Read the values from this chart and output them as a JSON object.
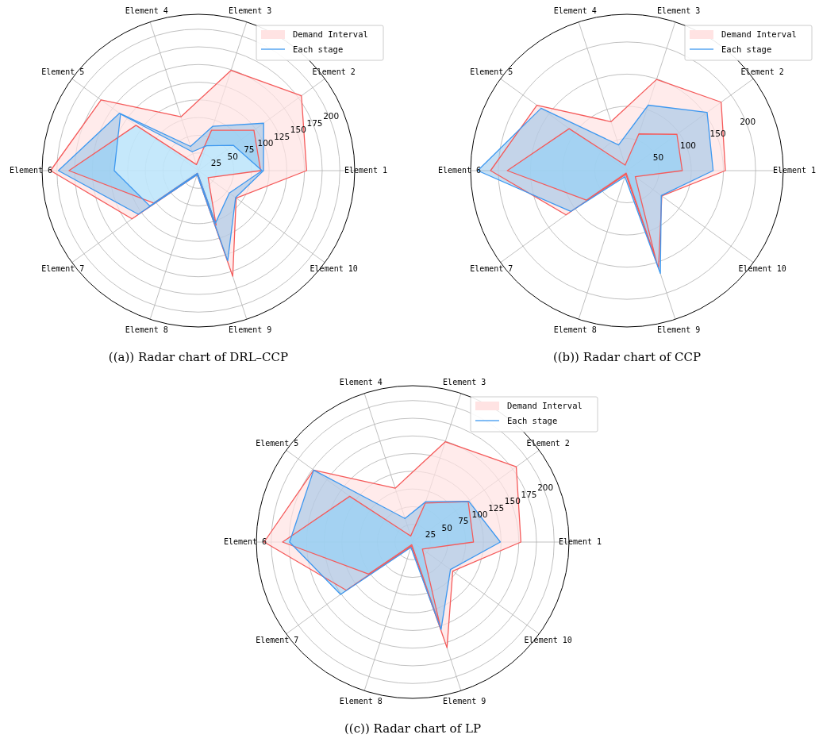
{
  "chart_data": [
    {
      "type": "radar",
      "title": "((a)) Radar chart of DRL–CCP",
      "categories": [
        "Element 3",
        "Element 2",
        "Element 1",
        "Element 10",
        "Element 9",
        "Element 8",
        "Element 7",
        "Element 6",
        "Element 5",
        "Element 4"
      ],
      "ylim": [
        0,
        221
      ],
      "yticks": [
        25,
        50,
        75,
        100,
        125,
        150,
        175,
        200
      ],
      "grid": true,
      "legend": "top right",
      "series": [
        {
          "name": "Demand Interval",
          "color": "#f55a5a",
          "values": [
            149,
            180,
            153,
            66,
            157,
            6,
            116,
            209,
            170,
            80
          ]
        },
        {
          "color": "#f55a5a",
          "values": [
            60,
            97,
            88,
            17,
            81,
            4,
            78,
            183,
            109,
            9
          ]
        },
        {
          "name": "Each stage",
          "color": "#3d98f0",
          "values": [
            66,
            114,
            92,
            65,
            134,
            6,
            105,
            198,
            138,
            36
          ]
        },
        {
          "color": "#3d98f0",
          "values": [
            37,
            61,
            90,
            54,
            78,
            4,
            85,
            119,
            136,
            28
          ]
        }
      ]
    },
    {
      "type": "radar",
      "title": "((b)) Radar chart of CCP",
      "categories": [
        "Element 3",
        "Element 2",
        "Element 1",
        "Element 10",
        "Element 9",
        "Element 8",
        "Element 7",
        "Element 6",
        "Element 5",
        "Element 4"
      ],
      "ylim": [
        0,
        243
      ],
      "yticks": [
        50,
        100,
        150,
        200
      ],
      "grid": true,
      "legend": "top right",
      "series": [
        {
          "name": "Demand Interval",
          "color": "#f55a5a",
          "values": [
            149,
            181,
            153,
            67,
            159,
            6,
            117,
            212,
            173,
            80
          ]
        },
        {
          "color": "#f55a5a",
          "values": [
            60,
            96,
            86,
            16,
            147,
            4,
            78,
            186,
            111,
            9
          ]
        },
        {
          "name": "Each stage",
          "color": "#3d98f0",
          "values": [
            107,
            154,
            134,
            66,
            168,
            10,
            108,
            232,
            165,
            42
          ]
        }
      ]
    },
    {
      "type": "radar",
      "title": "((c)) Radar chart of LP",
      "categories": [
        "Element 3",
        "Element 2",
        "Element 1",
        "Element 10",
        "Element 9",
        "Element 8",
        "Element 7",
        "Element 6",
        "Element 5",
        "Element 4"
      ],
      "ylim": [
        0,
        221
      ],
      "yticks": [
        25,
        50,
        75,
        100,
        125,
        150,
        175,
        200
      ],
      "grid": true,
      "legend": "top right",
      "series": [
        {
          "name": "Demand Interval",
          "color": "#f55a5a",
          "values": [
            149,
            181,
            153,
            70,
            157,
            6,
            116,
            210,
            173,
            80
          ]
        },
        {
          "color": "#f55a5a",
          "values": [
            58,
            97,
            86,
            17,
            128,
            4,
            77,
            184,
            110,
            9
          ]
        },
        {
          "name": "Each stage",
          "color": "#3d98f0",
          "values": [
            60,
            98,
            124,
            66,
            130,
            8,
            126,
            174,
            173,
            35
          ]
        }
      ]
    }
  ]
}
